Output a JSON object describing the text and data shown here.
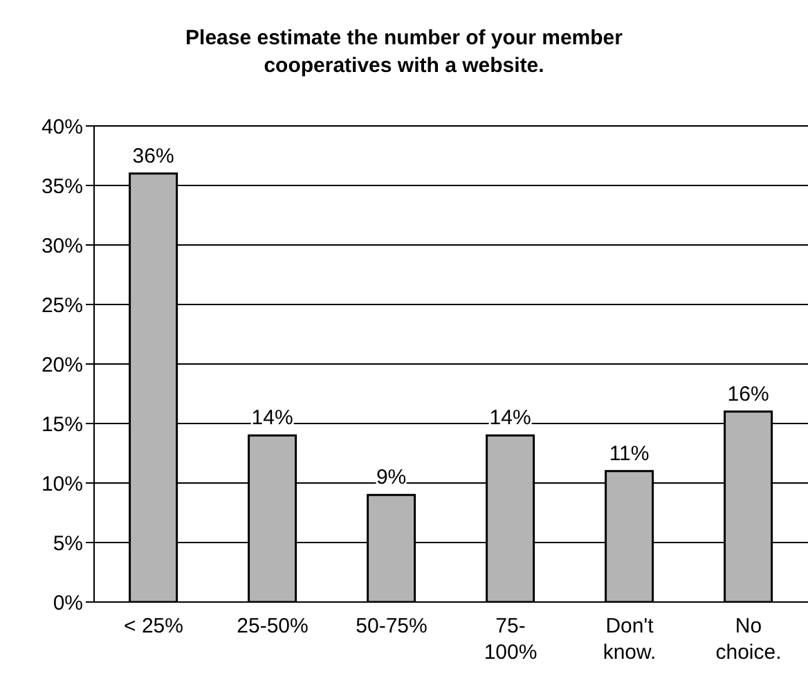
{
  "chart_data": {
    "type": "bar",
    "title": "Please estimate the number of your member cooperatives with a website.",
    "categories": [
      "< 25%",
      "25-50%",
      "50-75%",
      "75- 100%",
      "Don't know.",
      "No choice."
    ],
    "values": [
      36,
      14,
      9,
      14,
      11,
      16
    ],
    "value_labels": [
      "36%",
      "14%",
      "9%",
      "14%",
      "11%",
      "16%"
    ],
    "color": "#b4b4b4",
    "ylim": [
      0,
      40
    ],
    "yticks": [
      {
        "value": 0,
        "label": "0%"
      },
      {
        "value": 5,
        "label": "5%"
      },
      {
        "value": 10,
        "label": "10%"
      },
      {
        "value": 15,
        "label": "15%"
      },
      {
        "value": 20,
        "label": "20%"
      },
      {
        "value": 25,
        "label": "25%"
      },
      {
        "value": 30,
        "label": "30%"
      },
      {
        "value": 35,
        "label": "35%"
      },
      {
        "value": 40,
        "label": "40%"
      }
    ],
    "grid": "y"
  }
}
